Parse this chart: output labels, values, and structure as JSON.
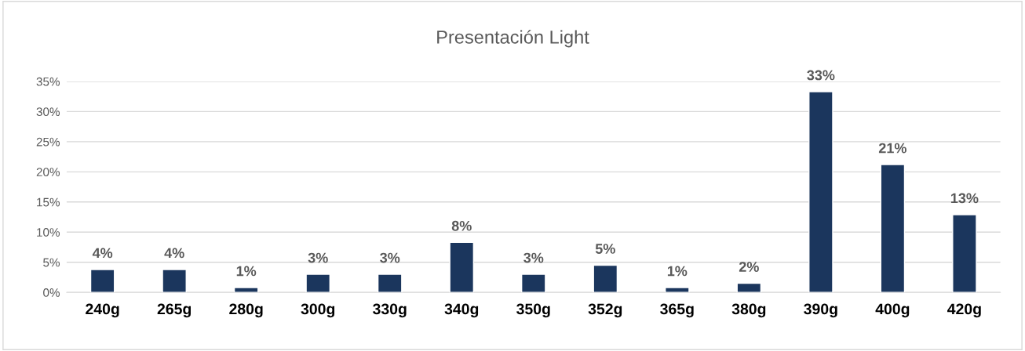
{
  "chart_data": {
    "type": "bar",
    "title": "Presentación Light",
    "categories": [
      "240g",
      "265g",
      "280g",
      "300g",
      "330g",
      "340g",
      "350g",
      "352g",
      "365g",
      "380g",
      "390g",
      "400g",
      "420g"
    ],
    "values": [
      3.8,
      3.8,
      0.8,
      3.0,
      3.0,
      8.3,
      3.0,
      4.5,
      0.8,
      1.5,
      33.3,
      21.2,
      12.9
    ],
    "value_labels": [
      "4%",
      "4%",
      "1%",
      "3%",
      "3%",
      "8%",
      "3%",
      "5%",
      "1%",
      "2%",
      "33%",
      "21%",
      "13%"
    ],
    "color": "#1b365d",
    "ylim": [
      0,
      35
    ],
    "yticks": [
      {
        "value": 0,
        "label": "0%"
      },
      {
        "value": 5,
        "label": "5%"
      },
      {
        "value": 10,
        "label": "10%"
      },
      {
        "value": 15,
        "label": "15%"
      },
      {
        "value": 20,
        "label": "20%"
      },
      {
        "value": 25,
        "label": "25%"
      },
      {
        "value": 30,
        "label": "30%"
      },
      {
        "value": 35,
        "label": "35%"
      }
    ],
    "grid": "y"
  }
}
